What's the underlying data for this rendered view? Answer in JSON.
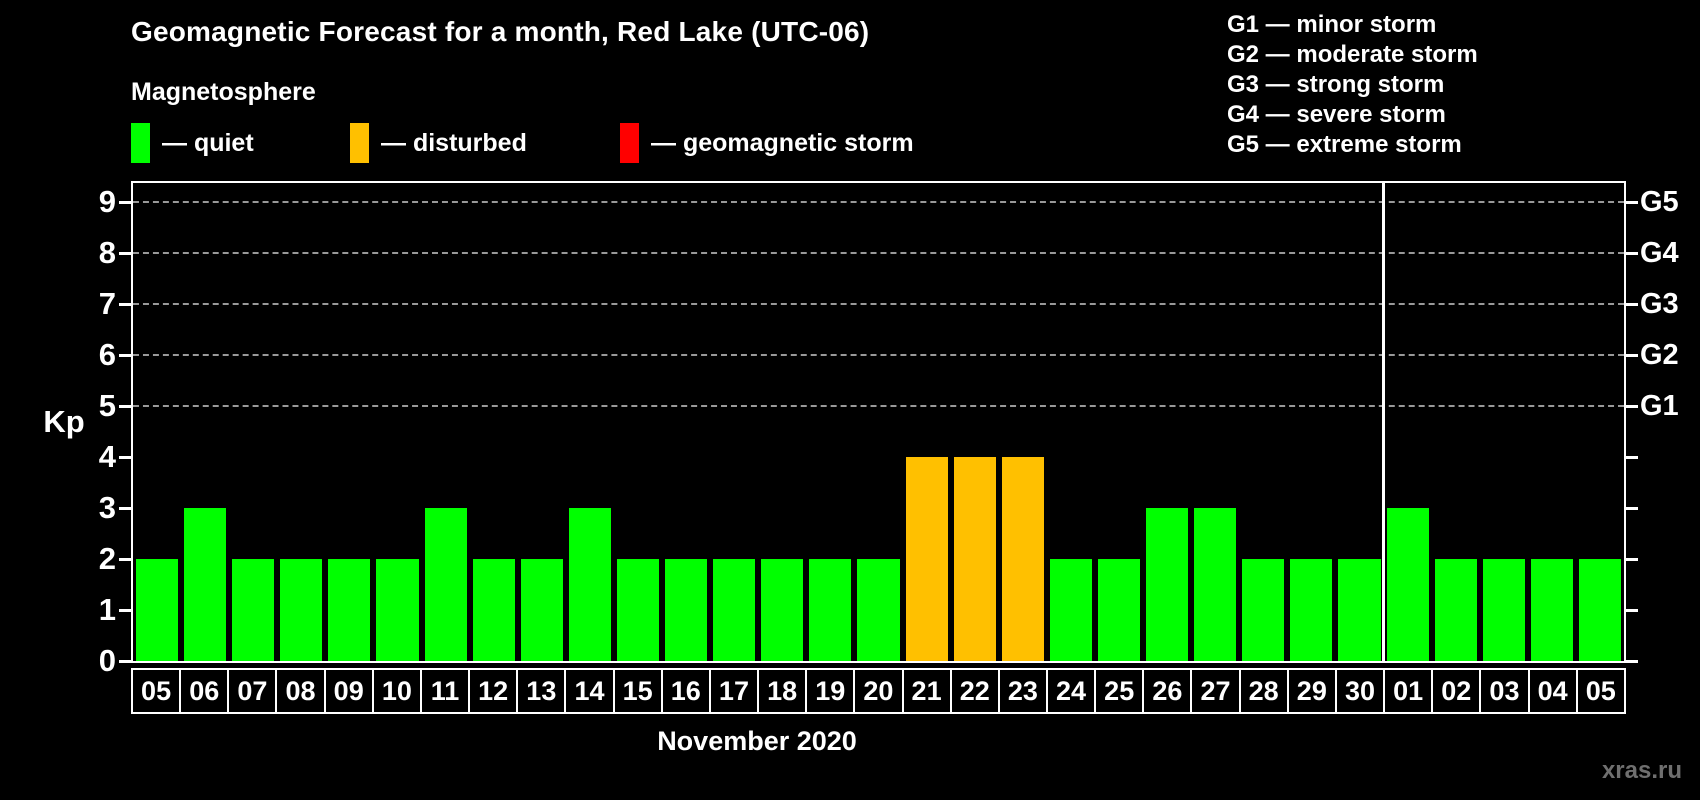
{
  "header": {
    "title": "Geomagnetic Forecast for a month, Red Lake (UTC-06)",
    "subtitle": "Magnetosphere"
  },
  "legend": {
    "items": [
      {
        "name": "quiet",
        "text": "— quiet",
        "color": "#00ff00"
      },
      {
        "name": "disturbed",
        "text": "— disturbed",
        "color": "#ffc000"
      },
      {
        "name": "storm",
        "text": "— geomagnetic storm",
        "color": "#ff0000"
      }
    ]
  },
  "g_legend": {
    "lines": [
      "G1 — minor storm",
      "G2 — moderate storm",
      "G3 — strong storm",
      "G4 — severe storm",
      "G5 — extreme storm"
    ]
  },
  "watermark": "xras.ru",
  "chart_data": {
    "type": "bar",
    "title": "Geomagnetic Forecast for a month, Red Lake (UTC-06)",
    "ylabel": "Kp",
    "xlabel": "November 2020",
    "ylim": [
      0,
      9.4
    ],
    "yticks": [
      0,
      1,
      2,
      3,
      4,
      5,
      6,
      7,
      8,
      9
    ],
    "gridlines_at": [
      5,
      6,
      7,
      8,
      9
    ],
    "grid_style": "dashed horizontal",
    "right_axis_labels": [
      {
        "label": "G1",
        "kp": 5
      },
      {
        "label": "G2",
        "kp": 6
      },
      {
        "label": "G3",
        "kp": 7
      },
      {
        "label": "G4",
        "kp": 8
      },
      {
        "label": "G5",
        "kp": 9
      }
    ],
    "legend_position": "top-left",
    "categories": [
      "05",
      "06",
      "07",
      "08",
      "09",
      "10",
      "11",
      "12",
      "13",
      "14",
      "15",
      "16",
      "17",
      "18",
      "19",
      "20",
      "21",
      "22",
      "23",
      "24",
      "25",
      "26",
      "27",
      "28",
      "29",
      "30",
      "01",
      "02",
      "03",
      "04",
      "05"
    ],
    "values": [
      2,
      3,
      2,
      2,
      2,
      2,
      3,
      2,
      2,
      3,
      2,
      2,
      2,
      2,
      2,
      2,
      4,
      4,
      4,
      2,
      2,
      3,
      3,
      2,
      2,
      2,
      3,
      2,
      2,
      2,
      2
    ],
    "states": [
      "quiet",
      "quiet",
      "quiet",
      "quiet",
      "quiet",
      "quiet",
      "quiet",
      "quiet",
      "quiet",
      "quiet",
      "quiet",
      "quiet",
      "quiet",
      "quiet",
      "quiet",
      "quiet",
      "disturbed",
      "disturbed",
      "disturbed",
      "quiet",
      "quiet",
      "quiet",
      "quiet",
      "quiet",
      "quiet",
      "quiet",
      "quiet",
      "quiet",
      "quiet",
      "quiet",
      "quiet"
    ],
    "colors": {
      "quiet": "#00ff00",
      "disturbed": "#ffc000",
      "storm": "#ff0000"
    },
    "month_separator_after_index": 25,
    "month_label": "November 2020"
  }
}
